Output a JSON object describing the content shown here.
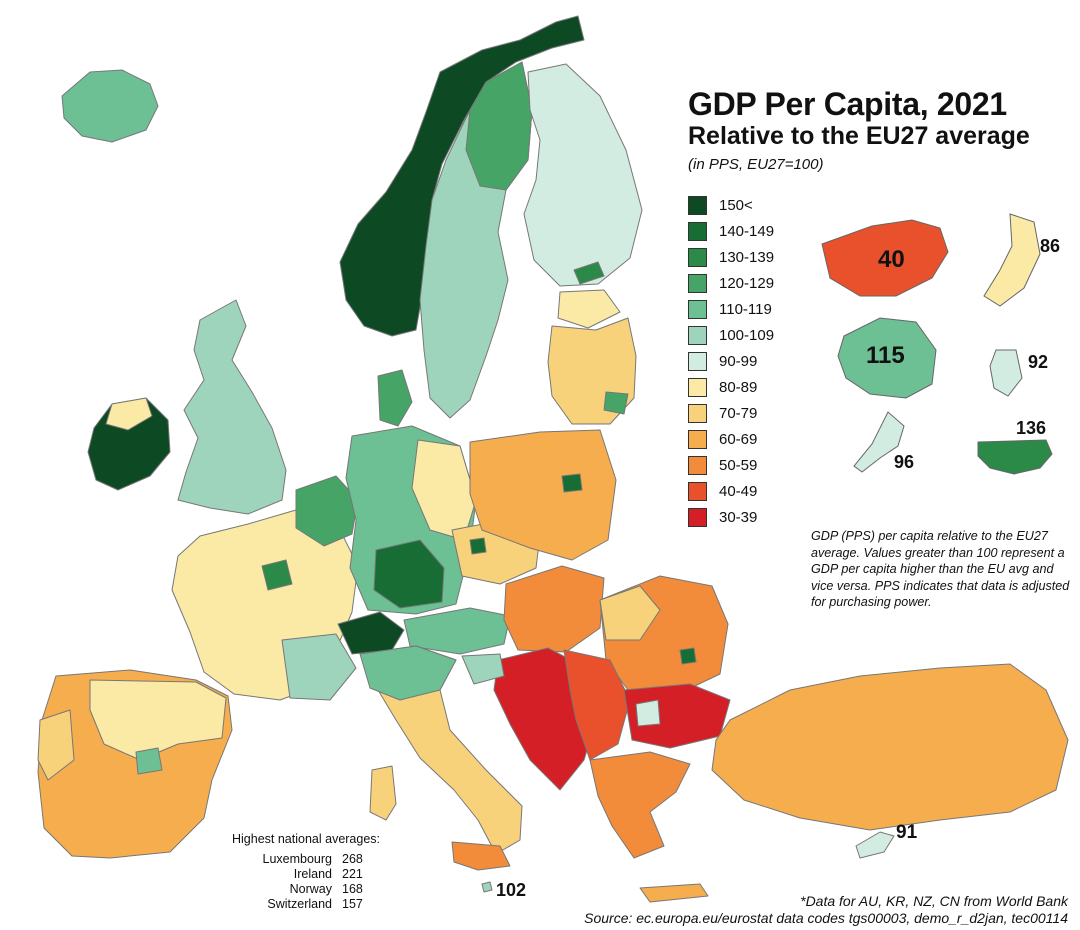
{
  "title": "GDP Per Capita, 2021",
  "subtitle": "Relative to the EU27 average",
  "unit_note": "(in PPS, EU27=100)",
  "legend": [
    {
      "label": "150<",
      "color": "#0d4a24"
    },
    {
      "label": "140-149",
      "color": "#176d33"
    },
    {
      "label": "130-139",
      "color": "#2b8a48"
    },
    {
      "label": "120-129",
      "color": "#46a466"
    },
    {
      "label": "110-119",
      "color": "#6dbf94"
    },
    {
      "label": "100-109",
      "color": "#9fd4bc"
    },
    {
      "label": "90-99",
      "color": "#d3ece2"
    },
    {
      "label": "80-89",
      "color": "#fbe9a6"
    },
    {
      "label": "70-79",
      "color": "#f8d27a"
    },
    {
      "label": "60-69",
      "color": "#f6ad4e"
    },
    {
      "label": "50-59",
      "color": "#f28c3b"
    },
    {
      "label": "40-49",
      "color": "#e8512b"
    },
    {
      "label": "30-39",
      "color": "#d51f26"
    }
  ],
  "insets": [
    {
      "country": "China",
      "value": "40",
      "color": "#e8512b"
    },
    {
      "country": "Japan",
      "value": "86",
      "color": "#fbe9a6"
    },
    {
      "country": "Australia",
      "value": "115",
      "color": "#6dbf94"
    },
    {
      "country": "South Korea",
      "value": "92",
      "color": "#d3ece2"
    },
    {
      "country": "New Zealand",
      "value": "96",
      "color": "#d3ece2"
    },
    {
      "country": "United States",
      "value": "136",
      "color": "#2b8a48"
    }
  ],
  "map_labels": {
    "cyprus": "91",
    "malta": "102"
  },
  "description": "GDP (PPS) per capita relative to the EU27 average. Values greater than 100 represent a GDP per capita higher than the EU avg and vice versa. PPS indicates that data is adjusted for purchasing power.",
  "national_averages": {
    "title": "Highest national averages:",
    "rows": [
      {
        "country": "Luxembourg",
        "value": "268"
      },
      {
        "country": "Ireland",
        "value": "221"
      },
      {
        "country": "Norway",
        "value": "168"
      },
      {
        "country": "Switzerland",
        "value": "157"
      }
    ]
  },
  "footnote": "*Data for AU, KR, NZ, CN from World Bank",
  "source": "Source: ec.europa.eu/eurostat data codes tgs00003, demo_r_d2jan, tec00114",
  "chart_data": {
    "type": "choropleth",
    "title": "GDP Per Capita, 2021",
    "subtitle": "Relative to the EU27 average",
    "unit": "(in PPS, EU27=100)",
    "bins": [
      "150<",
      "140-149",
      "130-139",
      "120-129",
      "110-119",
      "100-109",
      "90-99",
      "80-89",
      "70-79",
      "60-69",
      "50-59",
      "40-49",
      "30-39"
    ],
    "non_eu_values": {
      "China": 40,
      "Japan": 86,
      "Australia": 115,
      "South Korea": 92,
      "New Zealand": 96,
      "United States": 136
    },
    "labeled_regions": {
      "Cyprus": 91,
      "Malta": 102
    },
    "highest_national_averages": {
      "Luxembourg": 268,
      "Ireland": 221,
      "Norway": 168,
      "Switzerland": 157
    }
  }
}
